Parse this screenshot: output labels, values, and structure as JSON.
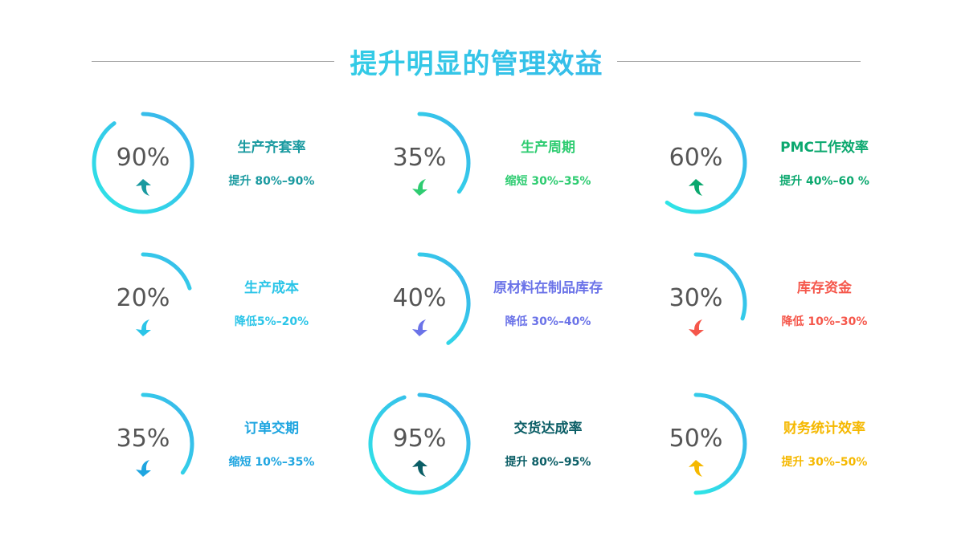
{
  "title": "提升明显的管理效益",
  "gradient": {
    "start": "#2ee6e6",
    "end": "#3ab0ec"
  },
  "cards": [
    {
      "percent": "90%",
      "value": 90,
      "name": "生产齐套率",
      "desc": "提升 80%–90%",
      "color": "#1a9aa0",
      "arrow": "up"
    },
    {
      "percent": "35%",
      "value": 35,
      "name": "生产周期",
      "desc": "缩短 30%–35%",
      "color": "#2ecc71",
      "arrow": "down"
    },
    {
      "percent": "60%",
      "value": 60,
      "name": "PMC工作效率",
      "desc": "提升 40%–60 %",
      "color": "#0aa86e",
      "arrow": "up"
    },
    {
      "percent": "20%",
      "value": 20,
      "name": "生产成本",
      "desc": "降低5%–20%",
      "color": "#2bc5e8",
      "arrow": "down"
    },
    {
      "percent": "40%",
      "value": 40,
      "name": "原材料在制品库存",
      "desc": "降低 30%–40%",
      "color": "#6b73e8",
      "arrow": "down"
    },
    {
      "percent": "30%",
      "value": 30,
      "name": "库存资金",
      "desc": "降低 10%–30%",
      "color": "#f5574b",
      "arrow": "down"
    },
    {
      "percent": "35%",
      "value": 35,
      "name": "订单交期",
      "desc": "缩短 10%–35%",
      "color": "#1ea5e0",
      "arrow": "down"
    },
    {
      "percent": "95%",
      "value": 95,
      "name": "交货达成率",
      "desc": "提升 80%–95%",
      "color": "#0b5e66",
      "arrow": "up"
    },
    {
      "percent": "50%",
      "value": 50,
      "name": "财务统计效率",
      "desc": "提升 30%–50%",
      "color": "#f5b800",
      "arrow": "up"
    }
  ]
}
